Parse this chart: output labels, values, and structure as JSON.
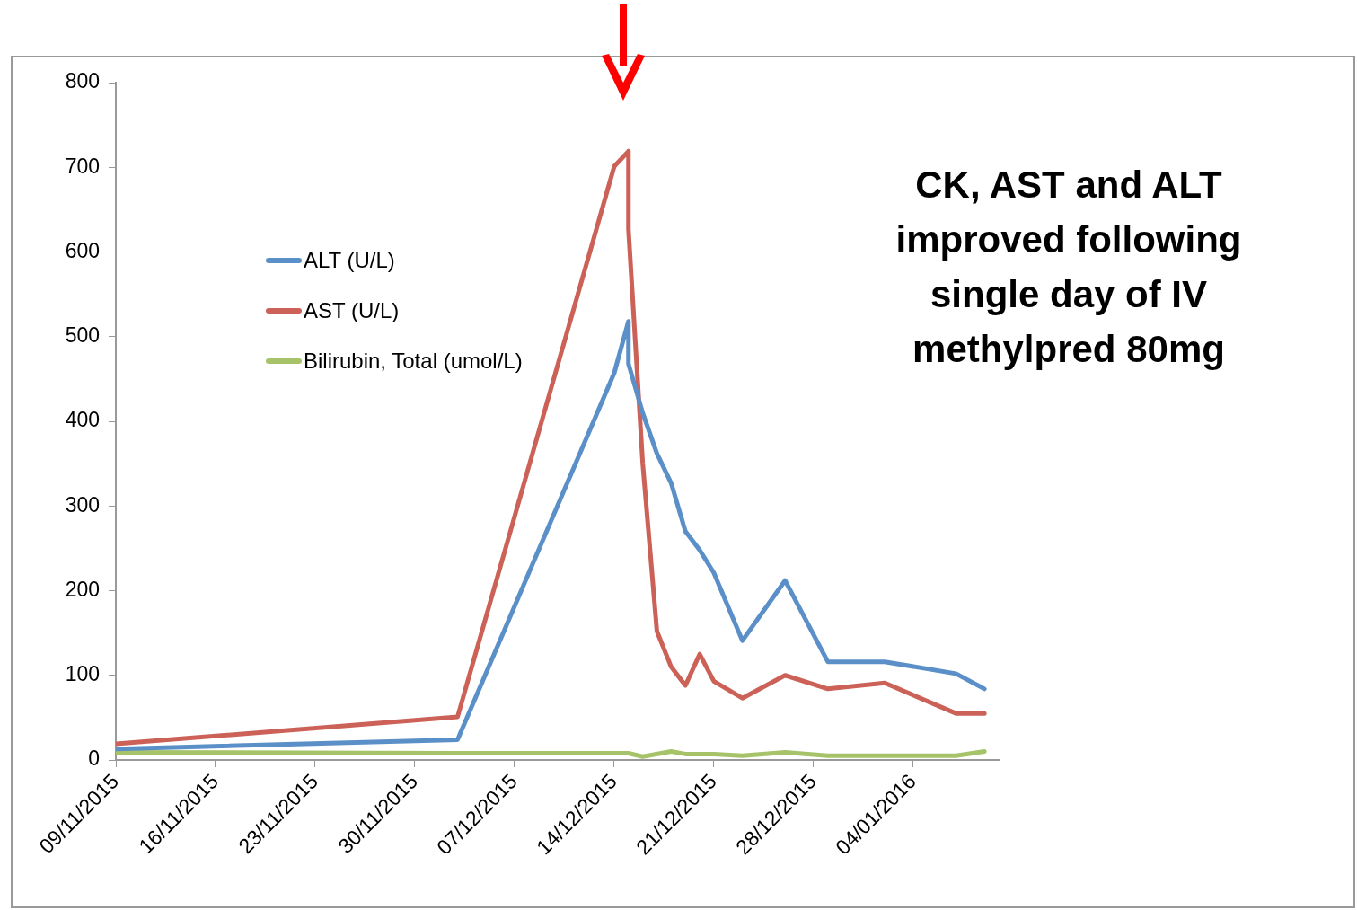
{
  "chart_data": {
    "type": "line",
    "annotations": [
      "CK, AST and ALT\nimproved following\nsingle day of IV\nmethylpred 80mg"
    ],
    "xlim": [
      "2015-11-09",
      "2016-01-10"
    ],
    "xticks": [
      {
        "value": "2015-11-09",
        "label": "09/11/2015"
      },
      {
        "value": "2015-11-16",
        "label": "16/11/2015"
      },
      {
        "value": "2015-11-23",
        "label": "23/11/2015"
      },
      {
        "value": "2015-11-30",
        "label": "30/11/2015"
      },
      {
        "value": "2015-12-07",
        "label": "07/12/2015"
      },
      {
        "value": "2015-12-14",
        "label": "14/12/2015"
      },
      {
        "value": "2015-12-21",
        "label": "21/12/2015"
      },
      {
        "value": "2015-12-28",
        "label": "28/12/2015"
      },
      {
        "value": "2016-01-04",
        "label": "04/01/2016"
      }
    ],
    "ylim": [
      0,
      800
    ],
    "yticks": [
      0,
      100,
      200,
      300,
      400,
      500,
      600,
      700,
      800
    ],
    "legend": "top left",
    "marker": "none",
    "line_style": "solid",
    "series": [
      {
        "name": "ALT (U/L)",
        "color": "#5b8fc7",
        "x": [
          "2015-11-09",
          "2015-12-03",
          "2015-12-14",
          "2015-12-15",
          "2015-12-15",
          "2015-12-16",
          "2015-12-17",
          "2015-12-18",
          "2015-12-19",
          "2015-12-20",
          "2015-12-21",
          "2015-12-23",
          "2015-12-26",
          "2015-12-29",
          "2016-01-02",
          "2016-01-07",
          "2016-01-09"
        ],
        "values": [
          13,
          24,
          457,
          518,
          468,
          410,
          362,
          327,
          270,
          248,
          221,
          141,
          212,
          116,
          116,
          102,
          84
        ]
      },
      {
        "name": "AST (U/L)",
        "color": "#cc6158",
        "x": [
          "2015-11-09",
          "2015-12-03",
          "2015-12-14",
          "2015-12-15",
          "2015-12-15",
          "2015-12-16",
          "2015-12-17",
          "2015-12-18",
          "2015-12-19",
          "2015-12-20",
          "2015-12-21",
          "2015-12-23",
          "2015-12-26",
          "2015-12-29",
          "2016-01-02",
          "2016-01-07",
          "2016-01-09"
        ],
        "values": [
          19,
          51,
          701,
          719,
          627,
          351,
          152,
          110,
          88,
          125,
          93,
          73,
          100,
          84,
          91,
          55,
          55
        ]
      },
      {
        "name": "Bilirubin, Total (umol/L)",
        "color": "#a6c36a",
        "x": [
          "2015-11-09",
          "2015-12-03",
          "2015-12-14",
          "2015-12-15",
          "2015-12-16",
          "2015-12-18",
          "2015-12-19",
          "2015-12-20",
          "2015-12-21",
          "2015-12-23",
          "2015-12-26",
          "2015-12-29",
          "2016-01-02",
          "2016-01-07",
          "2016-01-09"
        ],
        "values": [
          9,
          8,
          8,
          8,
          4,
          10,
          7,
          7,
          7,
          5,
          9,
          5,
          5,
          5,
          10
        ]
      }
    ]
  }
}
